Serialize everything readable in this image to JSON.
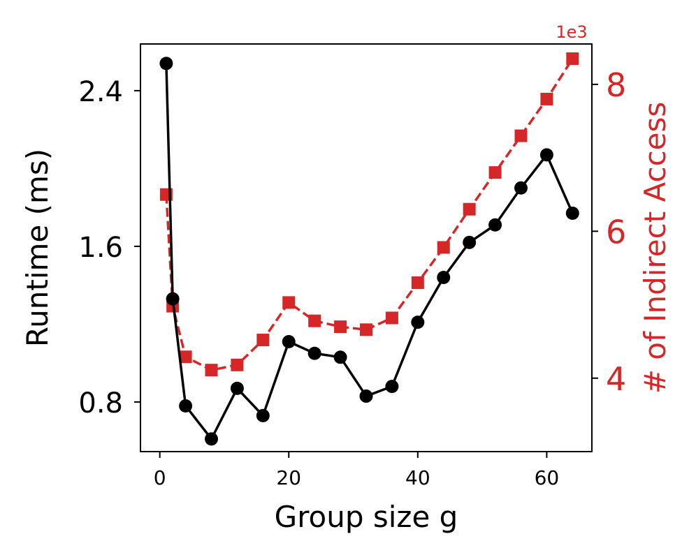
{
  "chart_data": {
    "type": "line",
    "title": "",
    "xlabel": "Group size g",
    "ylabel": "Runtime (ms)",
    "y2label": "# of Indirect Access",
    "y2_offset_label": "1e3",
    "xlim": [
      -3,
      67
    ],
    "ylim": [
      0.545,
      2.64
    ],
    "y2lim": [
      3.0,
      8.55
    ],
    "x_ticks": [
      0,
      20,
      40,
      60
    ],
    "x_tick_labels": [
      "0",
      "20",
      "40",
      "60"
    ],
    "y_ticks": [
      0.8,
      1.6,
      2.4
    ],
    "y_tick_labels": [
      "0.8",
      "1.6",
      "2.4"
    ],
    "y2_ticks": [
      4,
      6,
      8
    ],
    "y2_tick_labels": [
      "4",
      "6",
      "8"
    ],
    "colors": {
      "runtime": "#000000",
      "indirect": "#d62728"
    },
    "x": [
      1,
      2,
      4,
      8,
      12,
      16,
      20,
      24,
      28,
      32,
      36,
      40,
      44,
      48,
      52,
      56,
      60,
      64
    ],
    "series": [
      {
        "name": "Runtime (ms)",
        "axis": "left",
        "marker": "circle",
        "line": "solid",
        "values": [
          2.54,
          1.33,
          0.78,
          0.61,
          0.87,
          0.73,
          1.11,
          1.05,
          1.03,
          0.83,
          0.88,
          1.21,
          1.44,
          1.62,
          1.71,
          1.9,
          2.07,
          1.77
        ]
      },
      {
        "name": "# of Indirect Access (x1e3)",
        "axis": "right",
        "marker": "square",
        "line": "dashed",
        "values": [
          6.5,
          4.98,
          4.29,
          4.11,
          4.18,
          4.52,
          5.03,
          4.78,
          4.7,
          4.66,
          4.82,
          5.3,
          5.78,
          6.3,
          6.8,
          7.3,
          7.8,
          8.35
        ]
      }
    ]
  }
}
